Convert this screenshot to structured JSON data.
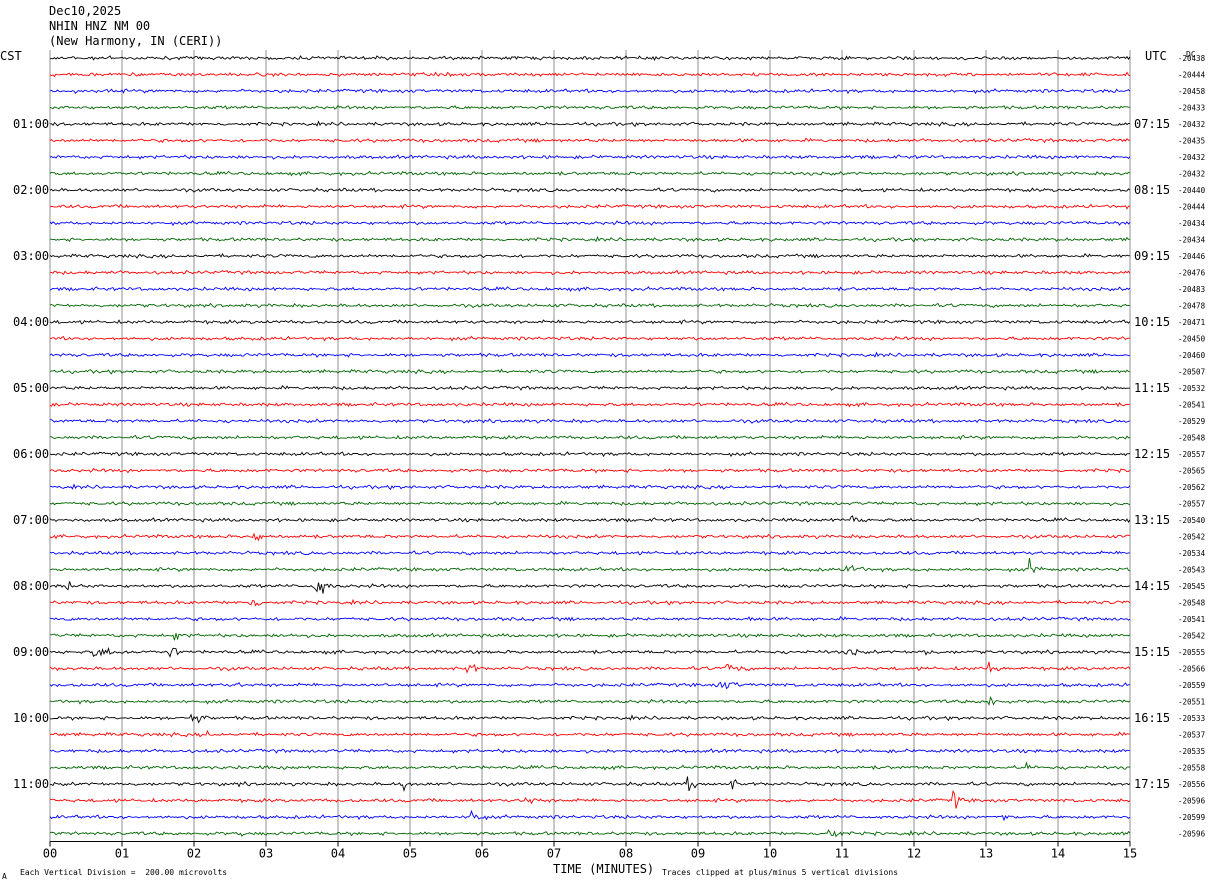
{
  "header": {
    "date": "Dec10,2025",
    "station": "NHIN HNZ NM 00",
    "location": "(New Harmony, IN (CERI))"
  },
  "left_tz": "CST",
  "right_tz": "UTC",
  "dc_label": "DC",
  "footer": {
    "scale_note": "Each Vertical Division =  200.00 microvolts",
    "clip_note": "Traces clipped at plus/minus 5 vertical divisions",
    "corner_mark": "A"
  },
  "chart_data": {
    "type": "line",
    "title": "",
    "xlabel": "TIME (MINUTES)",
    "xlim": [
      0,
      15
    ],
    "x_ticks": [
      "00",
      "01",
      "02",
      "03",
      "04",
      "05",
      "06",
      "07",
      "08",
      "09",
      "10",
      "11",
      "12",
      "13",
      "14",
      "15"
    ],
    "grid": true,
    "trace_colors": [
      "#000000",
      "#ff0000",
      "#0000ff",
      "#006600"
    ],
    "left_hour_labels": [
      "01:00",
      "02:00",
      "03:00",
      "04:00",
      "05:00",
      "06:00",
      "07:00",
      "08:00",
      "09:00",
      "10:00",
      "11:00"
    ],
    "right_hour_labels": [
      "07:15",
      "08:15",
      "09:15",
      "10:15",
      "11:15",
      "12:15",
      "13:15",
      "14:15",
      "15:15",
      "16:15",
      "17:15"
    ],
    "dc_offsets": [
      "-20438",
      "-20444",
      "-20458",
      "-20433",
      "-20432",
      "-20435",
      "-20432",
      "-20432",
      "-20440",
      "-20444",
      "-20434",
      "-20434",
      "-20446",
      "-20476",
      "-20483",
      "-20478",
      "-20471",
      "-20450",
      "-20460",
      "-20507",
      "-20532",
      "-20541",
      "-20529",
      "-20548",
      "-20557",
      "-20565",
      "-20562",
      "-20557",
      "-20540",
      "-20542",
      "-20534",
      "-20543",
      "-20545",
      "-20548",
      "-20541",
      "-20542",
      "-20555",
      "-20566",
      "-20559",
      "-20551",
      "-20533",
      "-20537",
      "-20535",
      "-20558",
      "-20556",
      "-20596",
      "-20599",
      "-20596"
    ],
    "events": [
      {
        "trace": 28,
        "x": 11.15,
        "amp": 3.0,
        "dur": 0.25
      },
      {
        "trace": 29,
        "x": 2.85,
        "amp": 2.5,
        "dur": 0.2
      },
      {
        "trace": 31,
        "x": 11.1,
        "amp": 2.8,
        "dur": 0.35
      },
      {
        "trace": 31,
        "x": 13.6,
        "amp": 2.5,
        "dur": 0.35
      },
      {
        "trace": 32,
        "x": 0.25,
        "amp": 1.4,
        "dur": 0.5
      },
      {
        "trace": 32,
        "x": 3.7,
        "amp": 5.0,
        "dur": 0.3
      },
      {
        "trace": 33,
        "x": 2.8,
        "amp": 2.5,
        "dur": 0.3
      },
      {
        "trace": 34,
        "x": 9.7,
        "amp": 0.8,
        "dur": 0.6
      },
      {
        "trace": 35,
        "x": 1.75,
        "amp": 2.0,
        "dur": 0.25
      },
      {
        "trace": 35,
        "x": 3.35,
        "amp": 1.4,
        "dur": 0.3
      },
      {
        "trace": 36,
        "x": 0.6,
        "amp": 1.8,
        "dur": 1.0
      },
      {
        "trace": 36,
        "x": 1.65,
        "amp": 2.5,
        "dur": 0.3
      },
      {
        "trace": 36,
        "x": 11.1,
        "amp": 2.2,
        "dur": 0.25
      },
      {
        "trace": 36,
        "x": 12.15,
        "amp": 2.2,
        "dur": 0.25
      },
      {
        "trace": 37,
        "x": 5.8,
        "amp": 2.5,
        "dur": 0.3
      },
      {
        "trace": 37,
        "x": 9.4,
        "amp": 2.0,
        "dur": 0.5
      },
      {
        "trace": 37,
        "x": 13.05,
        "amp": 2.5,
        "dur": 0.25
      },
      {
        "trace": 38,
        "x": 2.6,
        "amp": 0.9,
        "dur": 0.5
      },
      {
        "trace": 38,
        "x": 9.3,
        "amp": 1.6,
        "dur": 0.8
      },
      {
        "trace": 39,
        "x": 13.05,
        "amp": 2.8,
        "dur": 0.3
      },
      {
        "trace": 40,
        "x": 1.95,
        "amp": 2.2,
        "dur": 0.5
      },
      {
        "trace": 41,
        "x": 2.2,
        "amp": 1.6,
        "dur": 0.2
      },
      {
        "trace": 43,
        "x": 13.55,
        "amp": 2.2,
        "dur": 0.2
      },
      {
        "trace": 44,
        "x": 4.9,
        "amp": 2.5,
        "dur": 0.25
      },
      {
        "trace": 44,
        "x": 8.85,
        "amp": 2.0,
        "dur": 0.5
      },
      {
        "trace": 44,
        "x": 9.45,
        "amp": 2.2,
        "dur": 0.3
      },
      {
        "trace": 44,
        "x": 2.6,
        "amp": 0.8,
        "dur": 0.6
      },
      {
        "trace": 45,
        "x": 6.6,
        "amp": 2.5,
        "dur": 0.3
      },
      {
        "trace": 45,
        "x": 12.55,
        "amp": 3.5,
        "dur": 0.2
      },
      {
        "trace": 46,
        "x": 5.85,
        "amp": 4.0,
        "dur": 0.25
      },
      {
        "trace": 46,
        "x": 13.25,
        "amp": 1.6,
        "dur": 0.2
      },
      {
        "trace": 47,
        "x": 10.8,
        "amp": 3.5,
        "dur": 0.3
      },
      {
        "trace": 47,
        "x": 2.6,
        "amp": 1.0,
        "dur": 0.5
      }
    ]
  }
}
